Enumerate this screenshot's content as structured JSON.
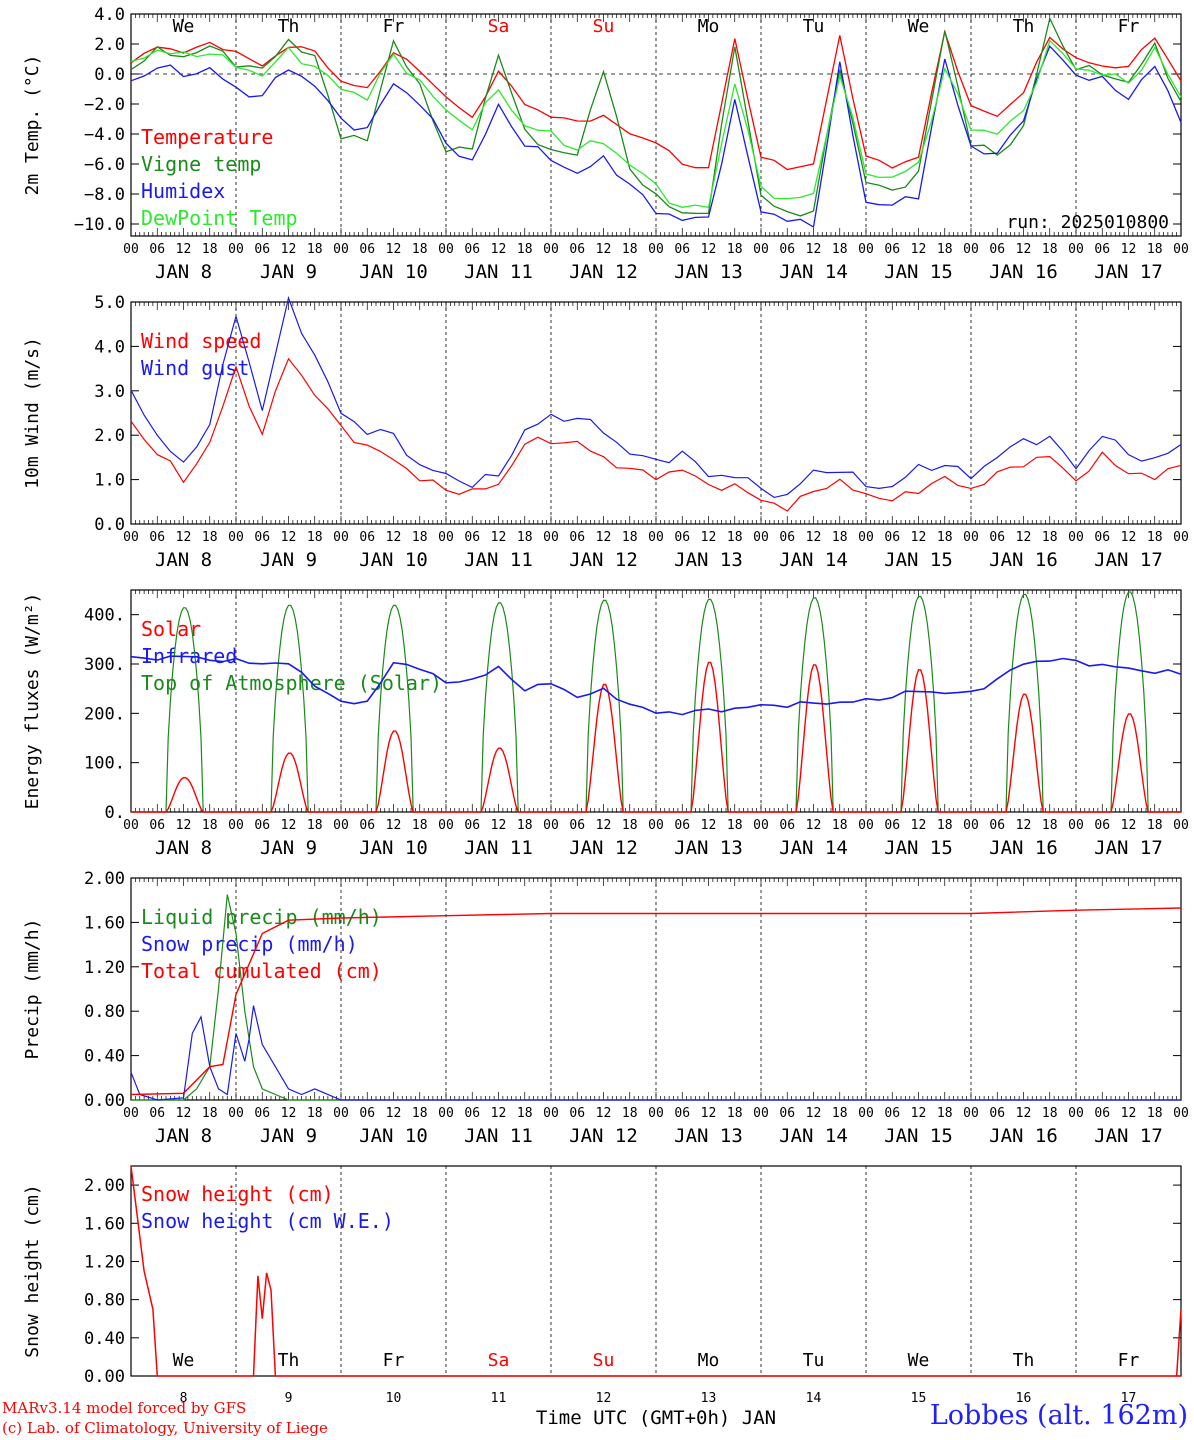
{
  "run_label": "run: 2025010800",
  "xaxis": {
    "hour_ticks": [
      "00",
      "06",
      "12",
      "18"
    ],
    "date_labels": [
      "JAN  8",
      "JAN  9",
      "JAN 10",
      "JAN 11",
      "JAN 12",
      "JAN 13",
      "JAN 14",
      "JAN 15",
      "JAN 16",
      "JAN 17"
    ],
    "weekdays": [
      "We",
      "Th",
      "Fr",
      "Sa",
      "Su",
      "Mo",
      "Tu",
      "We",
      "Th",
      "Fr"
    ],
    "weekend_indices": [
      3,
      4
    ],
    "day_numbers": [
      "8",
      "9",
      "10",
      "11",
      "12",
      "13",
      "14",
      "15",
      "16",
      "17"
    ],
    "bottom_label": "Time UTC (GMT+0h) JAN"
  },
  "footer": {
    "credit_line1": "MARv3.14 model forced by GFS",
    "credit_line2": "(c) Lab. of Climatology, University of Liege",
    "station": "Lobbes (alt. 162m)"
  },
  "colors": {
    "red": "#ff0000",
    "green": "#1a8a1a",
    "blue": "#1a1aee",
    "lightgreen": "#2ee82e"
  },
  "chart_data": [
    {
      "type": "line",
      "ylabel": "2m Temp. (°C)",
      "ylim": [
        -10.8,
        4.0
      ],
      "yticks": [
        "4.0",
        "2.0",
        "0.0",
        "−2.0",
        "−4.0",
        "−6.0",
        "−8.0",
        "−10.0"
      ],
      "ytick_values": [
        4,
        2,
        0,
        -2,
        -4,
        -6,
        -8,
        -10
      ],
      "zero_line": true,
      "x_hours_from_jan8_00": [
        0,
        6,
        12,
        18,
        24,
        30,
        36,
        42,
        48,
        54,
        60,
        66,
        72,
        78,
        84,
        90,
        96,
        102,
        108,
        114,
        120,
        126,
        132,
        138,
        144,
        150,
        156,
        162,
        168,
        174,
        180,
        186,
        192,
        198,
        204,
        210,
        216,
        222,
        228,
        234,
        240
      ],
      "series": [
        {
          "name": "Temperature",
          "color": "red",
          "values": [
            0.8,
            1.8,
            1.5,
            2.0,
            1.5,
            0.5,
            1.9,
            1.5,
            -0.5,
            -1.0,
            1.5,
            0.2,
            -1.5,
            -3.0,
            0.2,
            -2.0,
            -2.8,
            -3.2,
            -2.8,
            -4.0,
            -4.5,
            -6.0,
            -6.3,
            2.3,
            -5.5,
            -6.3,
            -6.0,
            2.5,
            -5.5,
            -6.2,
            -5.5,
            2.8,
            -2.2,
            -2.8,
            -1.2,
            2.5,
            1.0,
            0.5,
            0.5,
            2.5,
            -0.5
          ]
        },
        {
          "name": "Vigne temp",
          "color": "green",
          "values": [
            0.5,
            1.5,
            1.2,
            1.8,
            0.8,
            0.2,
            2.3,
            1.0,
            -4.0,
            -4.5,
            2.3,
            -1.0,
            -5.0,
            -5.0,
            1.5,
            -4.0,
            -5.0,
            -5.5,
            0.5,
            -6.5,
            -8.0,
            -9.5,
            -9.0,
            1.8,
            -8.0,
            -9.5,
            -9.0,
            0.3,
            -7.0,
            -8.0,
            -6.5,
            2.8,
            -4.5,
            -5.5,
            -3.5,
            3.5,
            0.5,
            0.0,
            -0.5,
            1.8,
            -1.8
          ]
        },
        {
          "name": "Humidex",
          "color": "blue",
          "values": [
            -0.5,
            0.5,
            0.0,
            0.3,
            -1.0,
            -1.5,
            0.5,
            -0.8,
            -3.0,
            -3.8,
            -0.5,
            -2.0,
            -4.5,
            -6.0,
            -2.0,
            -4.8,
            -5.5,
            -6.8,
            -5.5,
            -7.5,
            -9.0,
            -9.8,
            -9.5,
            -2.0,
            -9.0,
            -9.8,
            -10.0,
            0.5,
            -8.5,
            -8.8,
            -8.0,
            0.8,
            -4.8,
            -5.5,
            -2.8,
            1.8,
            0.0,
            -0.5,
            -1.5,
            0.5,
            -3.0
          ]
        },
        {
          "name": "DewPoint Temp",
          "color": "lightgreen",
          "values": [
            0.8,
            1.6,
            1.2,
            1.5,
            0.5,
            0.0,
            1.5,
            0.5,
            -1.0,
            -1.5,
            1.2,
            -0.5,
            -2.5,
            -3.5,
            -1.0,
            -3.5,
            -4.0,
            -5.0,
            -4.5,
            -6.0,
            -7.5,
            -9.0,
            -8.8,
            -0.5,
            -7.5,
            -8.5,
            -8.0,
            0.0,
            -6.5,
            -7.0,
            -6.0,
            0.3,
            -3.5,
            -4.0,
            -2.5,
            2.0,
            0.5,
            0.0,
            -0.5,
            1.5,
            -1.5
          ]
        }
      ]
    },
    {
      "type": "line",
      "ylabel": "10m Wind (m/s)",
      "ylim": [
        0.0,
        5.0
      ],
      "yticks": [
        "5.0",
        "4.0",
        "3.0",
        "2.0",
        "1.0",
        "0.0"
      ],
      "ytick_values": [
        5,
        4,
        3,
        2,
        1,
        0
      ],
      "x_hours_from_jan8_00": [
        0,
        6,
        12,
        18,
        24,
        30,
        36,
        42,
        48,
        54,
        60,
        66,
        72,
        78,
        84,
        90,
        96,
        102,
        108,
        114,
        120,
        126,
        132,
        138,
        144,
        150,
        156,
        162,
        168,
        174,
        180,
        186,
        192,
        198,
        204,
        210,
        216,
        222,
        228,
        234,
        240
      ],
      "series": [
        {
          "name": "Wind speed",
          "color": "red",
          "values": [
            2.3,
            1.6,
            1.0,
            1.8,
            3.5,
            2.0,
            3.8,
            2.9,
            2.2,
            1.7,
            1.5,
            1.0,
            0.8,
            0.7,
            0.9,
            1.8,
            1.9,
            1.8,
            1.5,
            1.2,
            1.1,
            1.2,
            0.9,
            0.8,
            0.6,
            0.3,
            0.8,
            0.9,
            0.7,
            0.5,
            0.8,
            1.0,
            0.8,
            1.1,
            1.4,
            1.5,
            1.0,
            1.5,
            1.2,
            1.0,
            1.4
          ]
        },
        {
          "name": "Wind gust",
          "color": "blue",
          "values": [
            3.0,
            2.0,
            1.3,
            2.3,
            4.7,
            2.6,
            5.0,
            3.8,
            2.5,
            2.1,
            2.0,
            1.3,
            1.1,
            0.9,
            1.1,
            2.1,
            2.4,
            2.4,
            2.1,
            1.6,
            1.4,
            1.6,
            1.1,
            1.1,
            0.8,
            0.6,
            1.2,
            1.2,
            0.9,
            0.8,
            1.3,
            1.3,
            1.1,
            1.5,
            1.9,
            1.9,
            1.3,
            2.0,
            1.6,
            1.4,
            1.8
          ]
        }
      ]
    },
    {
      "type": "line",
      "ylabel": "Energy fluxes (W/m²)",
      "ylim": [
        0,
        450
      ],
      "yticks": [
        "400.",
        "300.",
        "200.",
        "100.",
        "0."
      ],
      "ytick_values": [
        400,
        300,
        200,
        100,
        0
      ],
      "daily_peaks_solar": [
        70,
        120,
        165,
        130,
        260,
        305,
        300,
        290,
        240,
        200
      ],
      "daily_peaks_toa": [
        415,
        420,
        420,
        425,
        430,
        432,
        435,
        438,
        442,
        447
      ],
      "infrared_x_hours": [
        0,
        12,
        24,
        36,
        48,
        54,
        60,
        66,
        72,
        78,
        84,
        90,
        96,
        102,
        108,
        114,
        120,
        132,
        144,
        156,
        168,
        180,
        192,
        204,
        210,
        216,
        228,
        240
      ],
      "infrared_values": [
        310,
        315,
        305,
        300,
        220,
        225,
        300,
        295,
        260,
        270,
        290,
        250,
        260,
        235,
        245,
        220,
        200,
        205,
        215,
        220,
        225,
        245,
        240,
        300,
        310,
        305,
        290,
        280
      ],
      "series": [
        {
          "name": "Solar",
          "color": "red"
        },
        {
          "name": "Infrared",
          "color": "blue"
        },
        {
          "name": "Top of Atmosphere (Solar)",
          "color": "green"
        }
      ]
    },
    {
      "type": "line",
      "ylabel": "Precip (mm/h)",
      "ylim": [
        0.0,
        2.0
      ],
      "yticks": [
        "2.00",
        "1.60",
        "1.20",
        "0.80",
        "0.40",
        "0.00"
      ],
      "ytick_values": [
        2.0,
        1.6,
        1.2,
        0.8,
        0.4,
        0.0
      ],
      "liquid_x_hours": [
        0,
        12,
        15,
        18,
        20,
        22,
        24,
        26,
        28,
        30,
        33,
        36,
        42,
        240
      ],
      "liquid_values": [
        0,
        0,
        0.1,
        0.3,
        1.0,
        1.85,
        1.5,
        0.8,
        0.3,
        0.1,
        0.05,
        0,
        0,
        0
      ],
      "snow_x_hours": [
        0,
        2,
        6,
        12,
        14,
        16,
        18,
        20,
        22,
        24,
        26,
        27,
        28,
        30,
        33,
        36,
        39,
        42,
        48,
        240
      ],
      "snow_values": [
        0.25,
        0.05,
        0,
        0.02,
        0.6,
        0.75,
        0.3,
        0.1,
        0.05,
        0.6,
        0.35,
        0.55,
        0.85,
        0.5,
        0.3,
        0.1,
        0.05,
        0.1,
        0,
        0
      ],
      "cumulated_x_hours": [
        0,
        12,
        18,
        21,
        24,
        30,
        36,
        48,
        72,
        96,
        120,
        168,
        192,
        216,
        240
      ],
      "cumulated_values": [
        0.05,
        0.06,
        0.3,
        0.32,
        0.95,
        1.5,
        1.62,
        1.64,
        1.66,
        1.68,
        1.68,
        1.68,
        1.68,
        1.71,
        1.73
      ],
      "series": [
        {
          "name": "Liquid precip (mm/h)",
          "color": "green"
        },
        {
          "name": "Snow precip (mm/h)",
          "color": "blue"
        },
        {
          "name": "Total cumulated (cm)",
          "color": "red"
        }
      ]
    },
    {
      "type": "line",
      "ylabel": "Snow height (cm)",
      "ylim": [
        0.0,
        2.2
      ],
      "yticks": [
        "2.00",
        "1.60",
        "1.20",
        "0.80",
        "0.40",
        "0.00"
      ],
      "ytick_values": [
        2.0,
        1.6,
        1.2,
        0.8,
        0.4,
        0.0
      ],
      "x_hours_from_jan8_00": [
        0,
        3,
        5,
        6,
        8,
        28,
        29,
        30,
        31,
        32,
        33,
        34,
        240
      ],
      "values": [
        2.2,
        1.1,
        0.7,
        0.0,
        0.0,
        0.0,
        1.05,
        0.6,
        1.08,
        0.9,
        0.0,
        0.0,
        0.0
      ],
      "end_value": 0.7,
      "series": [
        {
          "name": "Snow height (cm)",
          "color": "red"
        },
        {
          "name": "Snow height (cm W.E.)",
          "color": "blue"
        }
      ]
    }
  ]
}
